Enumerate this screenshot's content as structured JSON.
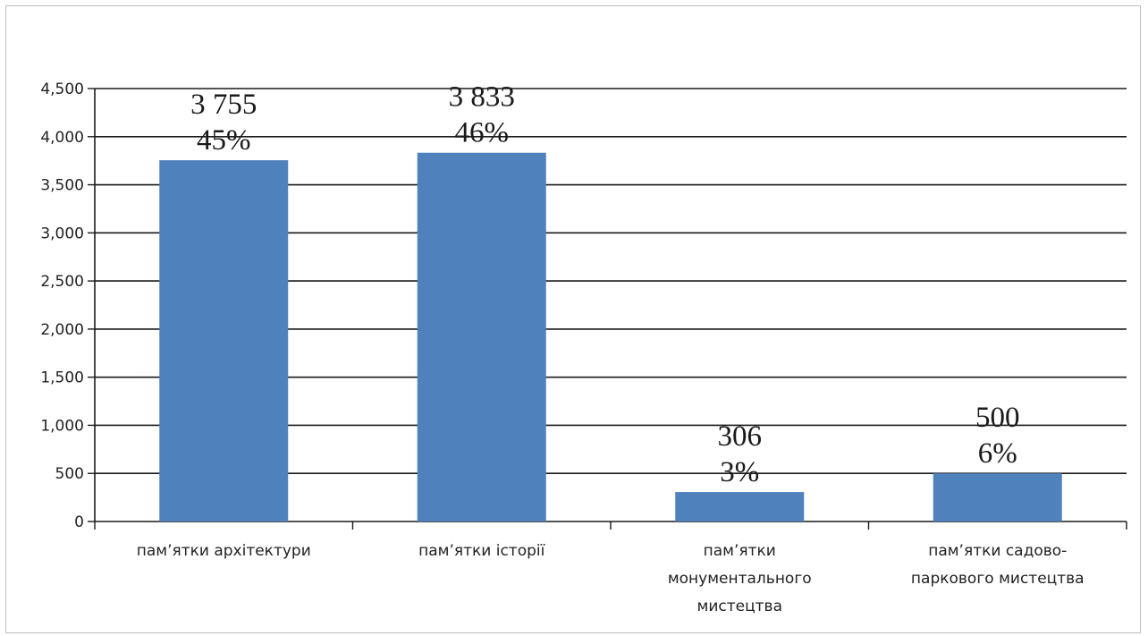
{
  "chart_data": {
    "type": "bar",
    "title": "",
    "xlabel": "",
    "ylabel": "",
    "ylim": [
      0,
      4500
    ],
    "yticks": [
      0,
      500,
      1000,
      1500,
      2000,
      2500,
      3000,
      3500,
      4000,
      4500
    ],
    "ytick_labels": [
      "0",
      "500",
      "1,000",
      "1,500",
      "2,000",
      "2,500",
      "3,000",
      "3,500",
      "4,000",
      "4,500"
    ],
    "grid": true,
    "legend": "none",
    "bar_color": "#4f81bd",
    "categories": [
      [
        "пам’ятки архітектури"
      ],
      [
        "пам’ятки історії"
      ],
      [
        "пам’ятки",
        "монументального",
        "мистецтва"
      ],
      [
        "пам’ятки садово-",
        "паркового мистецтва"
      ]
    ],
    "values": [
      3755,
      3833,
      306,
      500
    ],
    "data_labels": [
      [
        "3 755",
        "45%"
      ],
      [
        "3 833",
        "46%"
      ],
      [
        "306",
        "3%"
      ],
      [
        "500",
        "6%"
      ]
    ]
  }
}
